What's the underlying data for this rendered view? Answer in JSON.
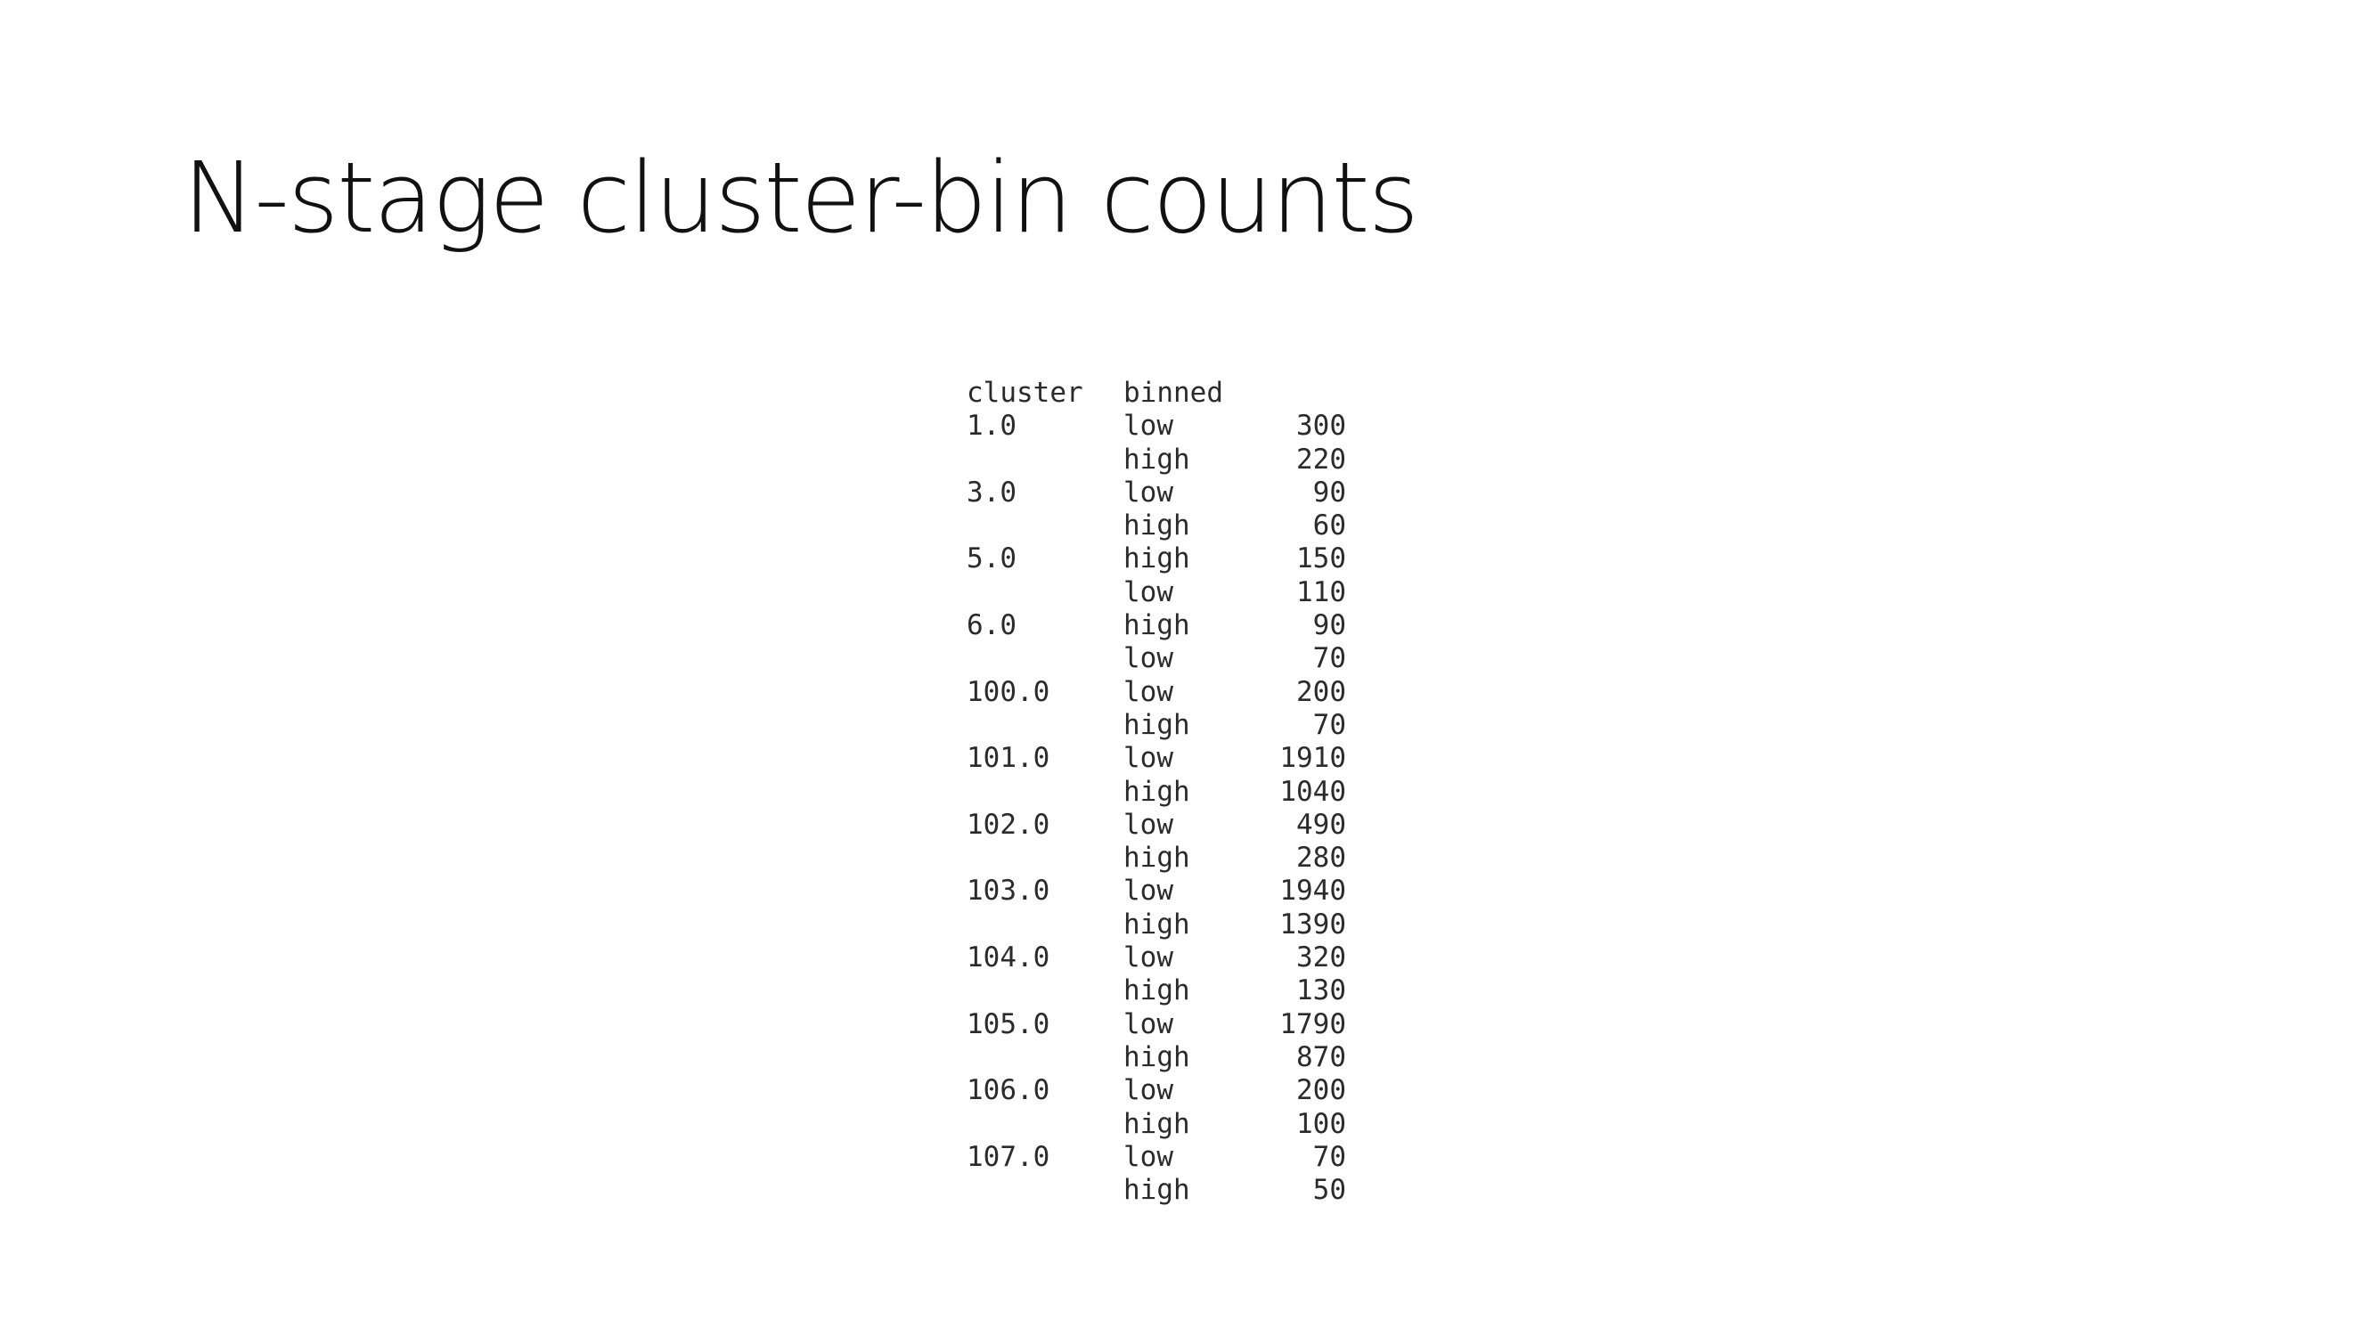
{
  "title": "N-stage cluster-bin counts",
  "table": {
    "headers": {
      "cluster": "cluster",
      "binned": "binned",
      "count": ""
    },
    "rows": [
      {
        "cluster": "1.0",
        "binned": "low",
        "count": "300"
      },
      {
        "cluster": "",
        "binned": "high",
        "count": "220"
      },
      {
        "cluster": "3.0",
        "binned": "low",
        "count": "90"
      },
      {
        "cluster": "",
        "binned": "high",
        "count": "60"
      },
      {
        "cluster": "5.0",
        "binned": "high",
        "count": "150"
      },
      {
        "cluster": "",
        "binned": "low",
        "count": "110"
      },
      {
        "cluster": "6.0",
        "binned": "high",
        "count": "90"
      },
      {
        "cluster": "",
        "binned": "low",
        "count": "70"
      },
      {
        "cluster": "100.0",
        "binned": "low",
        "count": "200"
      },
      {
        "cluster": "",
        "binned": "high",
        "count": "70"
      },
      {
        "cluster": "101.0",
        "binned": "low",
        "count": "1910"
      },
      {
        "cluster": "",
        "binned": "high",
        "count": "1040"
      },
      {
        "cluster": "102.0",
        "binned": "low",
        "count": "490"
      },
      {
        "cluster": "",
        "binned": "high",
        "count": "280"
      },
      {
        "cluster": "103.0",
        "binned": "low",
        "count": "1940"
      },
      {
        "cluster": "",
        "binned": "high",
        "count": "1390"
      },
      {
        "cluster": "104.0",
        "binned": "low",
        "count": "320"
      },
      {
        "cluster": "",
        "binned": "high",
        "count": "130"
      },
      {
        "cluster": "105.0",
        "binned": "low",
        "count": "1790"
      },
      {
        "cluster": "",
        "binned": "high",
        "count": "870"
      },
      {
        "cluster": "106.0",
        "binned": "low",
        "count": "200"
      },
      {
        "cluster": "",
        "binned": "high",
        "count": "100"
      },
      {
        "cluster": "107.0",
        "binned": "low",
        "count": "70"
      },
      {
        "cluster": "",
        "binned": "high",
        "count": "50"
      }
    ]
  }
}
